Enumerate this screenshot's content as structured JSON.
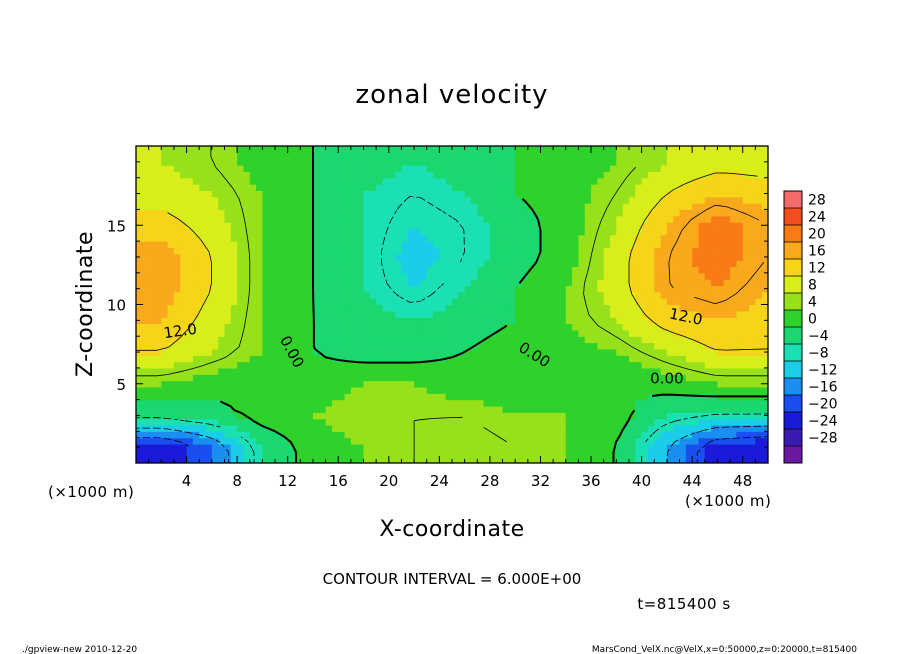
{
  "chart_data": {
    "type": "heatmap",
    "title": "zonal velocity",
    "xlabel": "X-coordinate",
    "ylabel": "Z-coordinate",
    "x_scale_note_left": "(×1000 m)",
    "x_scale_note_right": "(×1000 m)",
    "y_scale_note": "(×1000 m)",
    "xlim": [
      0,
      50
    ],
    "ylim": [
      0,
      20
    ],
    "x_ticks": [
      4,
      8,
      12,
      16,
      20,
      24,
      28,
      32,
      36,
      40,
      44,
      48
    ],
    "y_ticks": [
      5,
      10,
      15
    ],
    "contour_interval_text": "CONTOUR INTERVAL = 6.000E+00",
    "time_text": "t=815400 s",
    "contour_labels": [
      "12.0",
      "0.00",
      "0.00",
      "0.00",
      "12.0"
    ],
    "colorbar": {
      "levels": [
        28,
        24,
        20,
        16,
        12,
        8,
        4,
        0,
        -4,
        -8,
        -12,
        -16,
        -20,
        -24,
        -28
      ],
      "label_texts": [
        "28",
        "24",
        "20",
        "16",
        "12",
        "8",
        "4",
        "0",
        "−4",
        "−8",
        "−12",
        "−16",
        "−20",
        "−24",
        "−28"
      ],
      "colors": [
        "#f26c6c",
        "#f24e1e",
        "#f97b16",
        "#f9a91c",
        "#f5d41a",
        "#d8ee1a",
        "#96e11a",
        "#2fd12b",
        "#1ad86f",
        "#1ae0b4",
        "#1acde8",
        "#1a8ff0",
        "#1a4ef0",
        "#1a1ad8",
        "#3a1ab0",
        "#6a1aa0"
      ]
    },
    "field_samples": {
      "comment_free": true,
      "x": [
        2,
        6,
        10,
        14,
        18,
        22,
        26,
        30,
        34,
        38,
        42,
        46,
        50
      ],
      "z": [
        1,
        3,
        5,
        7,
        9,
        11,
        13,
        15,
        17,
        19
      ],
      "values": [
        [
          -24,
          -16,
          -4,
          2,
          4,
          6,
          8,
          6,
          4,
          0,
          -12,
          -22,
          -24
        ],
        [
          -4,
          -2,
          2,
          4,
          6,
          6,
          6,
          4,
          4,
          2,
          -4,
          -6,
          -6
        ],
        [
          4,
          2,
          0,
          2,
          4,
          4,
          2,
          2,
          2,
          0,
          2,
          4,
          4
        ],
        [
          12,
          8,
          4,
          0,
          -2,
          -2,
          0,
          2,
          2,
          4,
          8,
          12,
          12
        ],
        [
          16,
          10,
          4,
          0,
          -2,
          -4,
          -2,
          0,
          4,
          8,
          14,
          16,
          14
        ],
        [
          18,
          12,
          4,
          0,
          -4,
          -8,
          -4,
          0,
          4,
          10,
          18,
          20,
          16
        ],
        [
          18,
          12,
          4,
          0,
          -4,
          -10,
          -6,
          -2,
          2,
          10,
          18,
          22,
          18
        ],
        [
          14,
          10,
          4,
          0,
          -4,
          -8,
          -6,
          -2,
          2,
          8,
          16,
          22,
          18
        ],
        [
          10,
          8,
          4,
          0,
          -4,
          -6,
          -4,
          0,
          2,
          6,
          12,
          16,
          14
        ],
        [
          8,
          6,
          2,
          0,
          -2,
          -4,
          -2,
          0,
          2,
          4,
          8,
          10,
          10
        ]
      ]
    }
  },
  "footer": {
    "left": "./gpview-new  2010-12-20",
    "right": "MarsCond_VelX.nc@VelX,x=0:50000,z=0:20000,t=815400"
  }
}
